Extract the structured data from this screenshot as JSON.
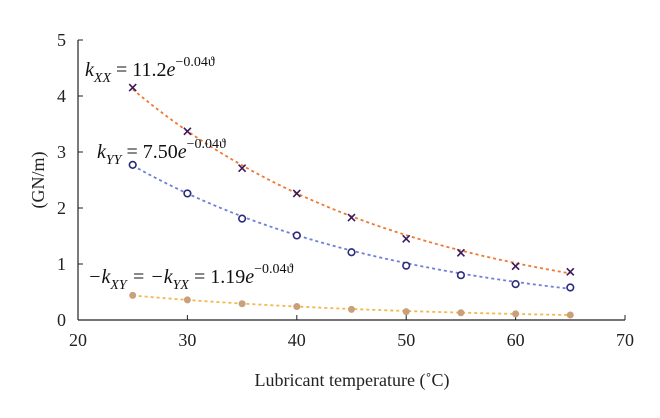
{
  "chart_data": {
    "type": "scatter",
    "xlabel": "Lubricant temperature (˚C)",
    "ylabel": "(GN/m)",
    "xlim": [
      20,
      70
    ],
    "ylim": [
      0,
      5
    ],
    "xticks": [
      "20",
      "30",
      "40",
      "50",
      "60",
      "70"
    ],
    "yticks": [
      "0",
      "1",
      "2",
      "3",
      "4",
      "5"
    ],
    "grid": false,
    "legend": "none",
    "x": [
      25,
      30,
      35,
      40,
      45,
      50,
      55,
      60,
      65
    ],
    "series": [
      {
        "marker": "x",
        "marker_color": "#3a1a5c",
        "line_color": "#f07830",
        "values": [
          4.15,
          3.37,
          2.71,
          2.26,
          1.83,
          1.45,
          1.2,
          0.96,
          0.86
        ],
        "fit": {
          "a": 11.2,
          "b": 0.04,
          "x_from": 25,
          "x_to": 65
        }
      },
      {
        "marker": "circle",
        "marker_color": "#2a2a7a",
        "line_color": "#6f7fd8",
        "values": [
          2.77,
          2.26,
          1.81,
          1.51,
          1.21,
          0.97,
          0.8,
          0.64,
          0.58
        ],
        "fit": {
          "a": 7.5,
          "b": 0.04,
          "x_from": 25,
          "x_to": 65
        }
      },
      {
        "marker": "dot",
        "marker_color": "#c9a07a",
        "line_color": "#f2b84a",
        "values": [
          0.44,
          0.36,
          0.29,
          0.24,
          0.19,
          0.15,
          0.13,
          0.11,
          0.09
        ],
        "fit": {
          "a": 1.19,
          "b": 0.04,
          "x_from": 25,
          "x_to": 65
        }
      }
    ],
    "annotations": [
      {
        "lhs": "k",
        "sub": "XX",
        "rest": " = 11.2",
        "base": "e",
        "exp": "−0.04ϑ"
      },
      {
        "lhs": "k",
        "sub": "YY",
        "rest": " = 7.50",
        "base": "e",
        "exp": "−0.04ϑ"
      },
      {
        "lhs": "−k",
        "sub": "XY",
        "mid": " = −k",
        "sub2": "YX",
        "rest": " = 1.19",
        "base": "e",
        "exp": "−0.04ϑ"
      }
    ]
  }
}
